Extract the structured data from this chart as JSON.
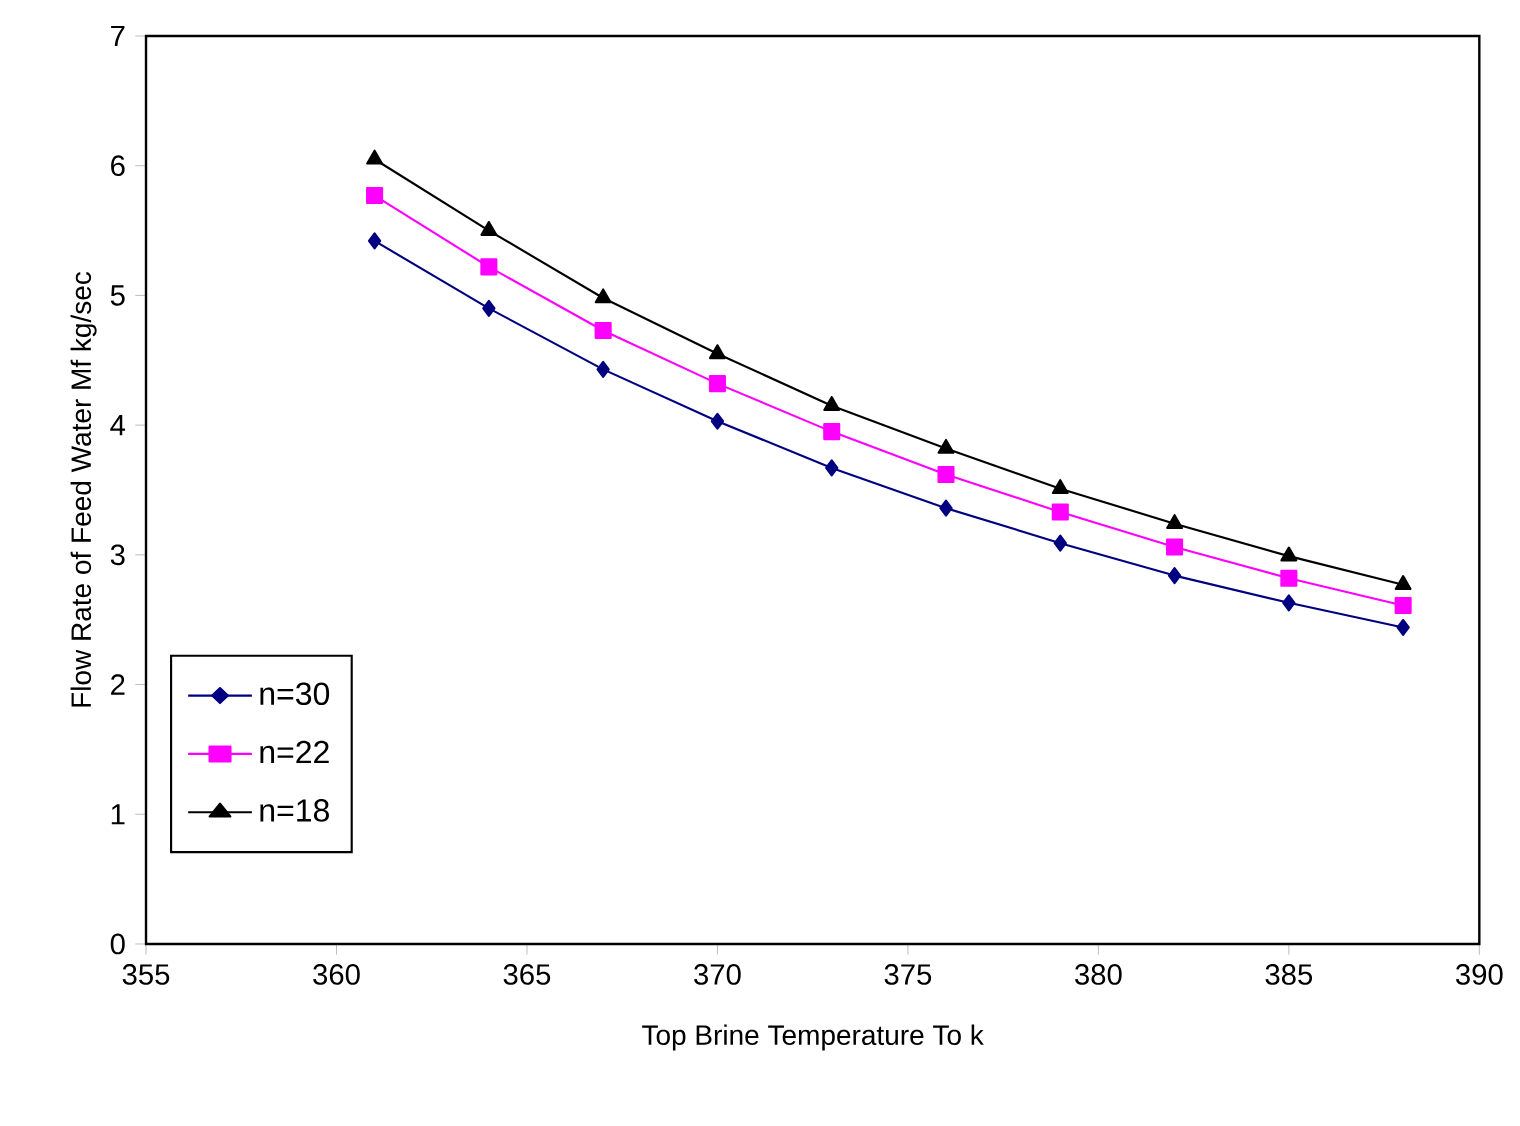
{
  "chart_data": {
    "type": "line",
    "xlabel": "Top Brine Temperature  To  k",
    "ylabel": "Flow Rate of Feed Water  Mf  kg/sec",
    "x": [
      361,
      364,
      367,
      370,
      373,
      376,
      379,
      382,
      385,
      388
    ],
    "series": [
      {
        "name": "n=30",
        "color": "#000080",
        "marker": "diamond",
        "values": [
          5.42,
          4.9,
          4.43,
          4.03,
          3.67,
          3.36,
          3.09,
          2.84,
          2.63,
          2.44
        ]
      },
      {
        "name": "n=22",
        "color": "#ff00ff",
        "marker": "square",
        "values": [
          5.77,
          5.22,
          4.73,
          4.32,
          3.95,
          3.62,
          3.33,
          3.06,
          2.82,
          2.61
        ]
      },
      {
        "name": "n=18",
        "color": "#000000",
        "marker": "triangle",
        "values": [
          6.05,
          5.5,
          4.98,
          4.55,
          4.15,
          3.82,
          3.51,
          3.24,
          2.99,
          2.77
        ]
      }
    ],
    "xlim": [
      355,
      390
    ],
    "xticks": [
      355,
      360,
      365,
      370,
      375,
      380,
      385,
      390
    ],
    "ylim": [
      0,
      7
    ],
    "yticks": [
      0,
      1,
      2,
      3,
      4,
      5,
      6,
      7
    ],
    "grid": false,
    "legend": "bottom left",
    "line_style": "solid"
  }
}
